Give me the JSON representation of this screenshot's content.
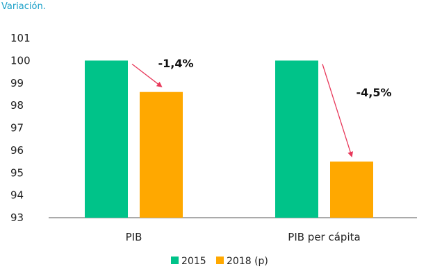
{
  "header": {
    "subtitle": "Variación."
  },
  "colors": {
    "s2015": "#00c389",
    "s2018": "#ffa800",
    "arrow": "#e8385a",
    "axis": "#555555"
  },
  "chart_data": {
    "type": "bar",
    "categories": [
      "PIB",
      "PIB per cápita"
    ],
    "series": [
      {
        "name": "2015",
        "values": [
          100,
          100
        ]
      },
      {
        "name": "2018 (p)",
        "values": [
          98.6,
          95.5
        ]
      }
    ],
    "ylim": [
      93,
      101
    ],
    "yticks": [
      93,
      94,
      95,
      96,
      97,
      98,
      99,
      100,
      101
    ],
    "annotations": [
      "-1,4%",
      "-4,5%"
    ],
    "legend": "bottom",
    "grid": false
  }
}
